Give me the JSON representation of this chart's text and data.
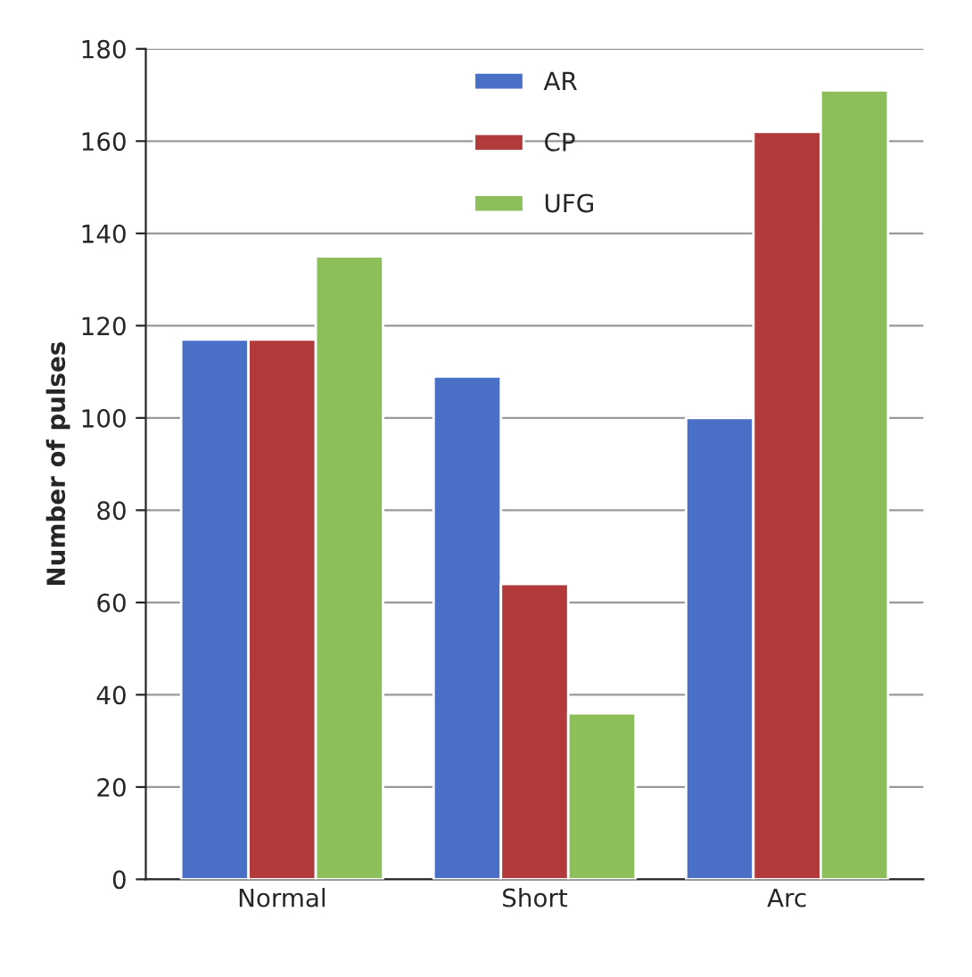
{
  "chart_data": {
    "type": "bar",
    "ylabel": "Number of pulses",
    "categories": [
      "Normal",
      "Short",
      "Arc"
    ],
    "series": [
      {
        "name": "AR",
        "color": "#4a6fc7",
        "values": [
          117,
          109,
          100
        ]
      },
      {
        "name": "CP",
        "color": "#b33a3a",
        "values": [
          117,
          64,
          162
        ]
      },
      {
        "name": "UFG",
        "color": "#8cbf5a",
        "values": [
          135,
          36,
          171
        ]
      }
    ],
    "ylim": [
      0,
      180
    ],
    "yticks": [
      0,
      20,
      40,
      60,
      80,
      100,
      120,
      140,
      160,
      180
    ],
    "grid": "y",
    "legend": "top"
  }
}
